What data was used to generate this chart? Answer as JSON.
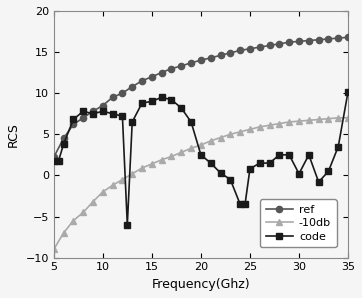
{
  "title": "",
  "xlabel": "Frequency(Ghz)",
  "ylabel": "RCS",
  "xlim": [
    5,
    35
  ],
  "ylim": [
    -10,
    20
  ],
  "xticks": [
    5,
    10,
    15,
    20,
    25,
    30,
    35
  ],
  "yticks": [
    -10,
    -5,
    0,
    5,
    10,
    15,
    20
  ],
  "code_x": [
    5,
    5.5,
    6,
    7,
    8,
    9,
    10,
    11,
    12,
    12.5,
    13,
    14,
    15,
    16,
    17,
    18,
    19,
    20,
    21,
    22,
    23,
    24,
    24.5,
    25,
    26,
    27,
    28,
    29,
    30,
    31,
    32,
    33,
    34,
    35
  ],
  "code_y": [
    1.7,
    1.8,
    3.8,
    6.8,
    7.8,
    7.5,
    7.8,
    7.5,
    7.2,
    -6.0,
    6.5,
    8.8,
    9.0,
    9.5,
    9.2,
    8.2,
    6.5,
    2.5,
    1.5,
    0.3,
    -0.5,
    -3.5,
    -3.5,
    0.8,
    1.5,
    1.5,
    2.5,
    2.5,
    0.2,
    2.5,
    -0.8,
    0.5,
    3.5,
    10.2
  ],
  "ref_x": [
    5,
    6,
    7,
    8,
    9,
    10,
    11,
    12,
    13,
    14,
    15,
    16,
    17,
    18,
    19,
    20,
    21,
    22,
    23,
    24,
    25,
    26,
    27,
    28,
    29,
    30,
    31,
    32,
    33,
    34,
    35
  ],
  "ref_y": [
    2.2,
    4.5,
    6.2,
    7.0,
    7.8,
    8.5,
    9.5,
    10.0,
    10.8,
    11.5,
    12.0,
    12.5,
    13.0,
    13.3,
    13.7,
    14.0,
    14.3,
    14.6,
    14.9,
    15.2,
    15.4,
    15.6,
    15.8,
    16.0,
    16.2,
    16.3,
    16.4,
    16.5,
    16.6,
    16.7,
    16.8
  ],
  "db10_x": [
    5,
    6,
    7,
    8,
    9,
    10,
    11,
    12,
    13,
    14,
    15,
    16,
    17,
    18,
    19,
    20,
    21,
    22,
    23,
    24,
    25,
    26,
    27,
    28,
    29,
    30,
    31,
    32,
    33,
    34,
    35
  ],
  "db10_y": [
    -9.0,
    -7.0,
    -5.5,
    -4.5,
    -3.2,
    -2.0,
    -1.2,
    -0.5,
    0.2,
    0.9,
    1.4,
    1.9,
    2.3,
    2.8,
    3.3,
    3.7,
    4.2,
    4.6,
    5.0,
    5.3,
    5.6,
    5.9,
    6.1,
    6.3,
    6.5,
    6.6,
    6.7,
    6.8,
    6.9,
    7.0,
    7.0
  ],
  "code_color": "#1a1a1a",
  "ref_color": "#555555",
  "db10_color": "#aaaaaa",
  "background_color": "#f5f5f5"
}
